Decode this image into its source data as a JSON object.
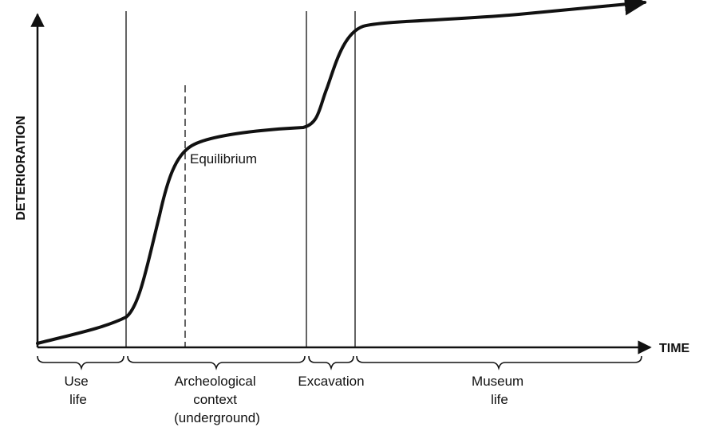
{
  "axes": {
    "y_label": "DETERIORATION",
    "x_label": "TIME"
  },
  "annotations": {
    "equilibrium": "Equilibrium"
  },
  "phases": [
    {
      "id": "use-life",
      "lines": [
        "Use",
        "life"
      ]
    },
    {
      "id": "archeological-context",
      "lines": [
        "Archeological",
        "context",
        "(underground)"
      ]
    },
    {
      "id": "excavation",
      "lines": [
        "Excavation"
      ]
    },
    {
      "id": "museum-life",
      "lines": [
        "Museum",
        "life"
      ]
    }
  ],
  "colors": {
    "ink": "#111111",
    "background": "#ffffff"
  }
}
